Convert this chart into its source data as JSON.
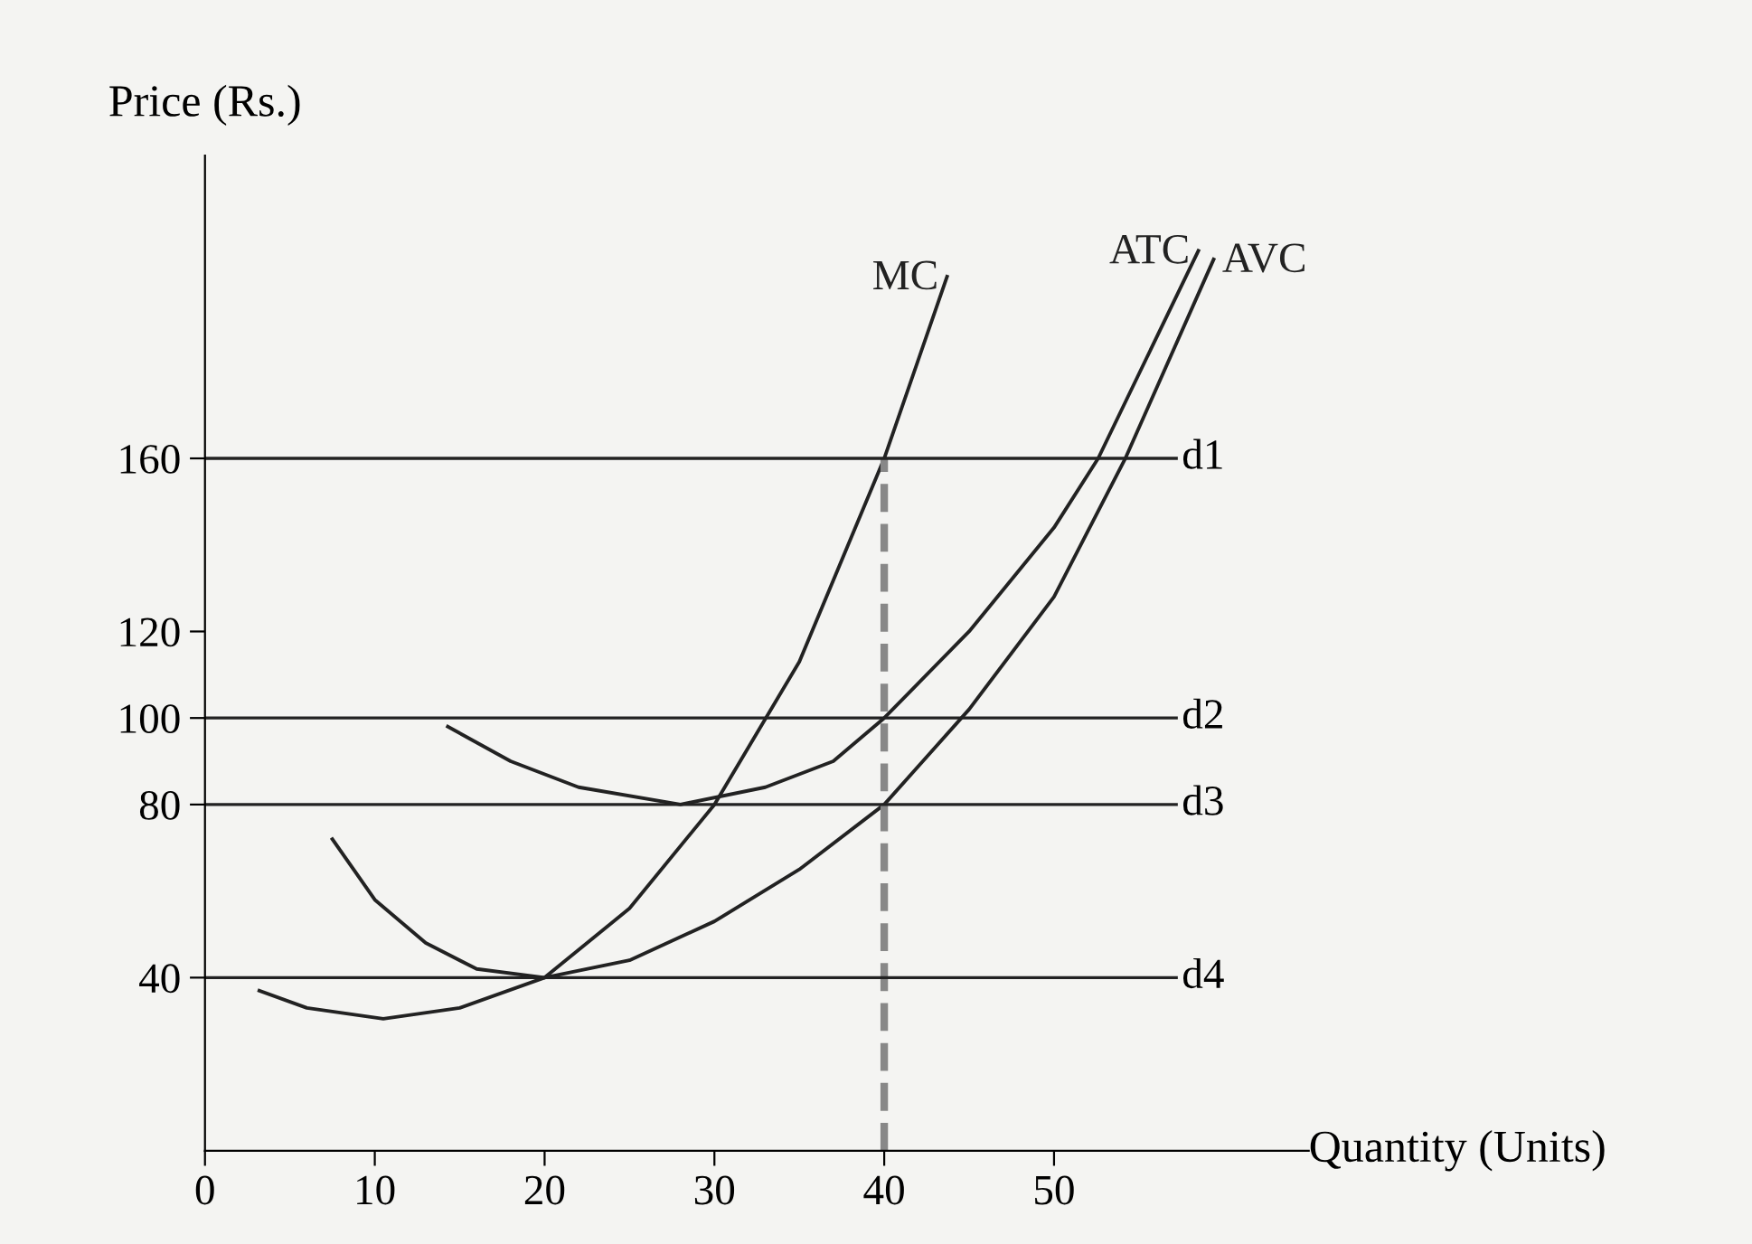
{
  "chart_data": {
    "type": "line",
    "xlabel": "Quantity (Units)",
    "ylabel": "Price (Rs.)",
    "xlim": [
      0,
      65
    ],
    "ylim": [
      0,
      230
    ],
    "xticks": [
      0,
      10,
      20,
      30,
      40,
      50
    ],
    "yticks": [
      40,
      80,
      100,
      120,
      160
    ],
    "grid": false,
    "legend": false,
    "marker": "none",
    "series": [
      {
        "name": "MC",
        "color": "#222222",
        "x": [
          3.2,
          6,
          10.5,
          15,
          20,
          25,
          30,
          35,
          40,
          43.7
        ],
        "values": [
          37,
          33,
          30.5,
          33,
          40,
          56,
          80,
          113,
          160,
          202
        ]
      },
      {
        "name": "ATC",
        "color": "#222222",
        "x": [
          14.3,
          18,
          22,
          28,
          33,
          37,
          40,
          45,
          50,
          52.6,
          58.5
        ],
        "values": [
          98,
          90,
          84,
          80,
          84,
          90,
          100,
          120,
          144,
          160,
          208
        ]
      },
      {
        "name": "AVC",
        "color": "#222222",
        "x": [
          7.5,
          10,
          13,
          16,
          20,
          25,
          30,
          35,
          40,
          45,
          50,
          54.2,
          59.4
        ],
        "values": [
          72,
          58,
          48,
          42,
          40,
          44,
          53,
          65,
          80,
          102,
          128,
          160,
          206
        ]
      },
      {
        "color": "#888888",
        "line_style": "dashed",
        "x": [
          40,
          40
        ],
        "values": [
          0,
          160
        ]
      }
    ],
    "ref_lines": [
      {
        "axis": "y",
        "value": 160,
        "label": "d1",
        "color": "#222222"
      },
      {
        "axis": "y",
        "value": 100,
        "label": "d2",
        "color": "#222222"
      },
      {
        "axis": "y",
        "value": 80,
        "label": "d3",
        "color": "#222222"
      },
      {
        "axis": "y",
        "value": 40,
        "label": "d4",
        "color": "#222222"
      }
    ]
  }
}
